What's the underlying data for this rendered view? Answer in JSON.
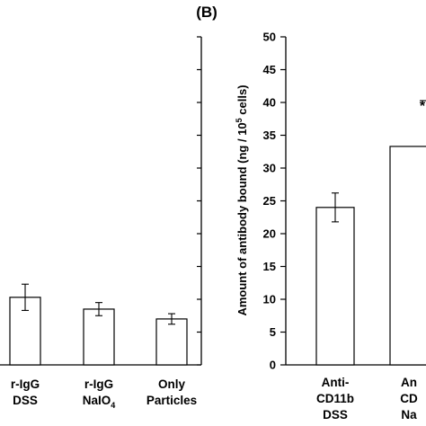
{
  "chart_data": [
    {
      "type": "bar",
      "categories": [
        {
          "lines": [
            "r-IgG",
            "DSS"
          ]
        },
        {
          "lines": [
            "r-IgG",
            "NaIO",
            "4"
          ],
          "sub_last": true
        },
        {
          "lines": [
            "Only",
            "Particles"
          ]
        }
      ],
      "values": [
        10.3,
        8.5,
        7.0
      ],
      "errors": [
        2.0,
        1.0,
        0.8
      ],
      "ylim": [
        0,
        50
      ],
      "xlabel": "",
      "ylabel": "",
      "grid": false,
      "title": ""
    },
    {
      "type": "bar",
      "panel_label": "(B)",
      "categories": [
        {
          "lines": [
            "Anti-",
            "CD11b",
            "DSS"
          ]
        },
        {
          "lines": [
            "An",
            "CD",
            "Na"
          ]
        }
      ],
      "values": [
        24.0,
        33.3
      ],
      "errors": [
        2.2,
        null
      ],
      "ylim": [
        0,
        50
      ],
      "yticks": [
        0,
        5,
        10,
        15,
        20,
        25,
        30,
        35,
        40,
        45,
        50
      ],
      "ylabel": {
        "before": "Amount of antibody bound (ng / 10",
        "sup": "5",
        "after": " cells)"
      },
      "xlabel": "",
      "grid": false,
      "title": "",
      "annotation": "*"
    }
  ]
}
